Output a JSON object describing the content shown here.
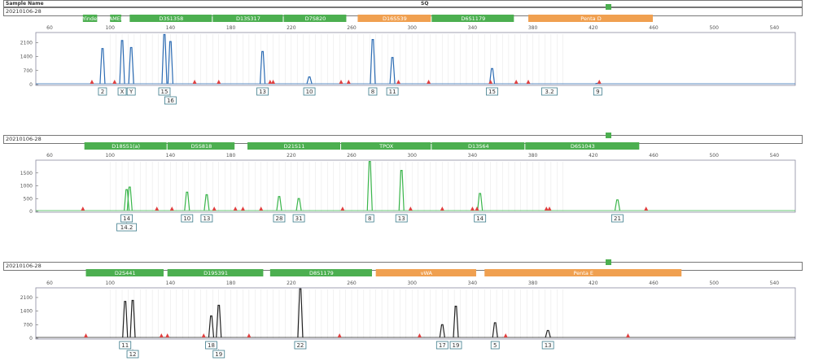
{
  "header": {
    "sample_name_label": "Sample Name",
    "sq_label": "SQ"
  },
  "colors": {
    "blue": "#2b6bb3",
    "green": "#39b54a",
    "black": "#222222",
    "marker_green": "#4caf50",
    "marker_orange": "#f0a050",
    "red_peak": "#e04040"
  },
  "chart_data": [
    {
      "type": "line",
      "title": "20210106-28",
      "dye": "blue",
      "xlim": [
        40,
        550
      ],
      "ylim": [
        0,
        2600
      ],
      "x_ticks": [
        60,
        100,
        140,
        180,
        220,
        260,
        300,
        340,
        380,
        420,
        460,
        500,
        540
      ],
      "y_ticks": [
        0,
        700,
        1400,
        2100
      ],
      "markers": [
        {
          "label": "Yindel",
          "start": 82,
          "end": 92,
          "color": "green"
        },
        {
          "label": "AMEL",
          "start": 100,
          "end": 108,
          "color": "green"
        },
        {
          "label": "D3S1358",
          "start": 113,
          "end": 168,
          "color": "green"
        },
        {
          "label": "D13S317",
          "start": 168,
          "end": 215,
          "color": "green"
        },
        {
          "label": "D7S820",
          "start": 215,
          "end": 257,
          "color": "green"
        },
        {
          "label": "D16S539",
          "start": 264,
          "end": 313,
          "color": "orange"
        },
        {
          "label": "D6S1179",
          "start": 313,
          "end": 368,
          "color": "green"
        },
        {
          "label": "Penta D",
          "start": 377,
          "end": 460,
          "color": "orange"
        }
      ],
      "peaks": [
        {
          "x": 95,
          "h": 1800
        },
        {
          "x": 108,
          "h": 2200
        },
        {
          "x": 114,
          "h": 1850
        },
        {
          "x": 136,
          "h": 2500
        },
        {
          "x": 140,
          "h": 2150
        },
        {
          "x": 201,
          "h": 1650
        },
        {
          "x": 232,
          "h": 380
        },
        {
          "x": 274,
          "h": 2250
        },
        {
          "x": 287,
          "h": 1350
        },
        {
          "x": 353,
          "h": 800
        },
        {
          "x": 423,
          "h": 60
        }
      ],
      "artifacts": [
        88,
        103,
        156,
        172,
        206,
        208,
        253,
        258,
        291,
        311,
        352,
        369,
        377,
        424
      ],
      "alleles": [
        {
          "x": 95,
          "label": "2",
          "row": 0
        },
        {
          "x": 108,
          "label": "X",
          "row": 0
        },
        {
          "x": 114,
          "label": "Y",
          "row": 0
        },
        {
          "x": 136,
          "label": "15",
          "row": 0
        },
        {
          "x": 140,
          "label": "16",
          "row": 1
        },
        {
          "x": 201,
          "label": "13",
          "row": 0
        },
        {
          "x": 232,
          "label": "10",
          "row": 0
        },
        {
          "x": 274,
          "label": "8",
          "row": 0
        },
        {
          "x": 287,
          "label": "11",
          "row": 0
        },
        {
          "x": 353,
          "label": "15",
          "row": 0
        },
        {
          "x": 391,
          "label": "3.2",
          "row": 0
        },
        {
          "x": 423,
          "label": "9",
          "row": 0
        }
      ]
    },
    {
      "type": "line",
      "title": "20210106-28",
      "dye": "green",
      "xlim": [
        40,
        550
      ],
      "ylim": [
        0,
        2000
      ],
      "x_ticks": [
        60,
        100,
        140,
        180,
        220,
        260,
        300,
        340,
        380,
        420,
        460,
        500,
        540
      ],
      "y_ticks": [
        0,
        500,
        1000,
        1500
      ],
      "markers": [
        {
          "label": "D18S51(a)",
          "start": 83,
          "end": 138,
          "color": "green"
        },
        {
          "label": "D5S818",
          "start": 138,
          "end": 183,
          "color": "green"
        },
        {
          "label": "D21S11",
          "start": 191,
          "end": 253,
          "color": "green"
        },
        {
          "label": "TPOX",
          "start": 253,
          "end": 313,
          "color": "green"
        },
        {
          "label": "D13S64",
          "start": 313,
          "end": 375,
          "color": "green"
        },
        {
          "label": "D6S1043",
          "start": 375,
          "end": 451,
          "color": "green"
        }
      ],
      "peaks": [
        {
          "x": 111,
          "h": 850
        },
        {
          "x": 113,
          "h": 950
        },
        {
          "x": 151,
          "h": 750
        },
        {
          "x": 164,
          "h": 650
        },
        {
          "x": 212,
          "h": 580
        },
        {
          "x": 225,
          "h": 500
        },
        {
          "x": 272,
          "h": 1950
        },
        {
          "x": 293,
          "h": 1600
        },
        {
          "x": 345,
          "h": 700
        },
        {
          "x": 436,
          "h": 450
        }
      ],
      "artifacts": [
        82,
        131,
        141,
        169,
        183,
        188,
        200,
        254,
        299,
        320,
        340,
        343,
        389,
        391,
        455
      ],
      "alleles": [
        {
          "x": 111,
          "label": "14",
          "row": 0
        },
        {
          "x": 111,
          "label": "14.2",
          "row": 1
        },
        {
          "x": 151,
          "label": "10",
          "row": 0
        },
        {
          "x": 164,
          "label": "13",
          "row": 0
        },
        {
          "x": 212,
          "label": "28",
          "row": 0
        },
        {
          "x": 225,
          "label": "31",
          "row": 0
        },
        {
          "x": 272,
          "label": "8",
          "row": 0
        },
        {
          "x": 293,
          "label": "13",
          "row": 0
        },
        {
          "x": 345,
          "label": "14",
          "row": 0
        },
        {
          "x": 436,
          "label": "21",
          "row": 0
        }
      ]
    },
    {
      "type": "line",
      "title": "20210106-28",
      "dye": "black",
      "xlim": [
        40,
        550
      ],
      "ylim": [
        0,
        2600
      ],
      "x_ticks": [
        60,
        100,
        140,
        180,
        220,
        260,
        300,
        340,
        380,
        420,
        460,
        500,
        540
      ],
      "y_ticks": [
        0,
        700,
        1400,
        2100
      ],
      "markers": [
        {
          "label": "D2S441",
          "start": 84,
          "end": 136,
          "color": "green"
        },
        {
          "label": "D19S391",
          "start": 138,
          "end": 202,
          "color": "green"
        },
        {
          "label": "D8S1179",
          "start": 206,
          "end": 274,
          "color": "green"
        },
        {
          "label": "vWA",
          "start": 276,
          "end": 343,
          "color": "orange"
        },
        {
          "label": "Penta E",
          "start": 348,
          "end": 479,
          "color": "orange"
        }
      ],
      "peaks": [
        {
          "x": 110,
          "h": 1900
        },
        {
          "x": 115,
          "h": 1950
        },
        {
          "x": 167,
          "h": 1150
        },
        {
          "x": 172,
          "h": 1700
        },
        {
          "x": 226,
          "h": 2550
        },
        {
          "x": 320,
          "h": 700
        },
        {
          "x": 329,
          "h": 1650
        },
        {
          "x": 355,
          "h": 800
        },
        {
          "x": 390,
          "h": 400
        }
      ],
      "artifacts": [
        84,
        134,
        138,
        162,
        192,
        252,
        305,
        362,
        443
      ],
      "alleles": [
        {
          "x": 110,
          "label": "11",
          "row": 0
        },
        {
          "x": 115,
          "label": "12",
          "row": 1
        },
        {
          "x": 167,
          "label": "18",
          "row": 0
        },
        {
          "x": 172,
          "label": "19",
          "row": 1
        },
        {
          "x": 226,
          "label": "22",
          "row": 0
        },
        {
          "x": 320,
          "label": "17",
          "row": 0
        },
        {
          "x": 329,
          "label": "19",
          "row": 0
        },
        {
          "x": 355,
          "label": "5",
          "row": 0
        },
        {
          "x": 390,
          "label": "13",
          "row": 0
        }
      ]
    }
  ]
}
